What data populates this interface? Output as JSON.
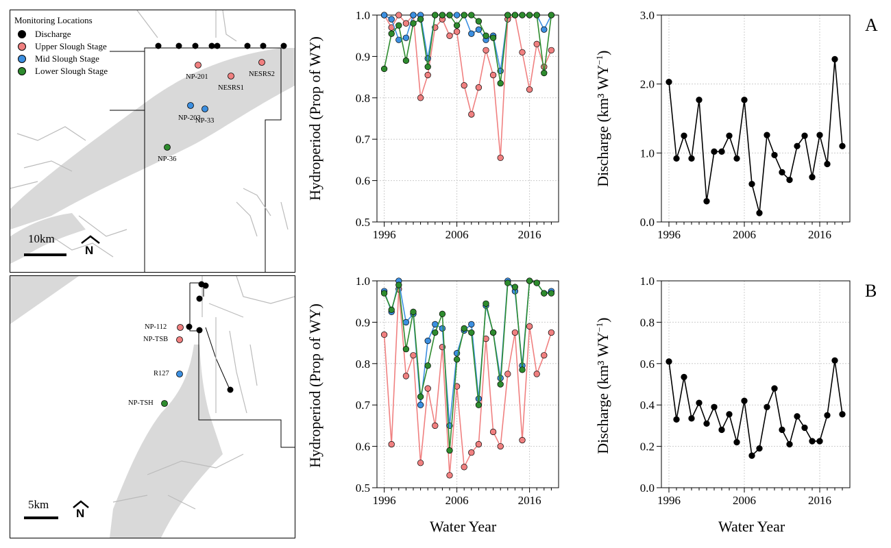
{
  "maps": {
    "legend": {
      "title": "Monitoring Locations",
      "items": [
        {
          "label": "Discharge",
          "color": "#000000"
        },
        {
          "label": "Upper Slough Stage",
          "color": "#f08080"
        },
        {
          "label": "Mid Slough Stage",
          "color": "#3c8fe0"
        },
        {
          "label": "Lower Slough Stage",
          "color": "#2e8b2e"
        }
      ]
    },
    "a": {
      "scale_label": "10km",
      "north_label": "N",
      "sites": [
        {
          "label": "NP-201",
          "color": "#f08080"
        },
        {
          "label": "NESRS1",
          "color": "#f08080"
        },
        {
          "label": "NESRS2",
          "color": "#f08080"
        },
        {
          "label": "NP-203",
          "color": "#3c8fe0"
        },
        {
          "label": "NP-33",
          "color": "#3c8fe0"
        },
        {
          "label": "NP-36",
          "color": "#2e8b2e"
        }
      ]
    },
    "b": {
      "scale_label": "5km",
      "north_label": "N",
      "sites": [
        {
          "label": "NP-112",
          "color": "#f08080"
        },
        {
          "label": "NP-TSB",
          "color": "#f08080"
        },
        {
          "label": "R127",
          "color": "#3c8fe0"
        },
        {
          "label": "NP-TSH",
          "color": "#2e8b2e"
        }
      ]
    }
  },
  "panels": {
    "a": {
      "letter": "A"
    },
    "b": {
      "letter": "B"
    }
  },
  "axis_text": {
    "hydro_ylabel": "Hydroperiod (Prop of WY)",
    "discharge_ylabel_main": "Discharge (km³ WY",
    "discharge_ylabel_sup": "−1",
    "discharge_ylabel_close": ")",
    "xlabel": "Water Year"
  },
  "colors": {
    "upper": "#f08080",
    "mid": "#3c8fe0",
    "lower": "#2e8b2e",
    "discharge": "#000000",
    "grid": "#cccccc",
    "map_shade": "#d9d9d9"
  },
  "chart_data": [
    {
      "id": "hydro-a",
      "type": "line",
      "ylabel": "Hydroperiod (Prop of WY)",
      "xlabel": "",
      "xlim": [
        1995,
        2020
      ],
      "ylim": [
        0.5,
        1.0
      ],
      "xticks": [
        1996,
        2006,
        2016
      ],
      "yticks": [
        0.5,
        0.6,
        0.7,
        0.8,
        0.9,
        1.0
      ],
      "ytick_labels": [
        "0.5",
        "0.6",
        "0.7",
        "0.8",
        "0.9",
        "1.0"
      ],
      "x": [
        1996,
        1997,
        1998,
        1999,
        2000,
        2001,
        2002,
        2003,
        2004,
        2005,
        2006,
        2007,
        2008,
        2009,
        2010,
        2011,
        2012,
        2013,
        2014,
        2015,
        2016,
        2017,
        2018,
        2019
      ],
      "series": [
        {
          "name": "Upper Slough Stage",
          "color": "#f08080",
          "values": [
            1.0,
            0.97,
            1.0,
            0.98,
            1.0,
            0.8,
            0.855,
            0.97,
            0.99,
            0.95,
            0.96,
            0.83,
            0.76,
            0.825,
            0.915,
            0.855,
            0.655,
            0.99,
            1.0,
            0.91,
            0.82,
            0.93,
            0.875,
            0.915
          ]
        },
        {
          "name": "Mid Slough Stage",
          "color": "#3c8fe0",
          "values": [
            1.0,
            0.99,
            0.94,
            0.945,
            1.0,
            1.0,
            0.895,
            1.0,
            1.0,
            1.0,
            1.0,
            1.0,
            0.955,
            0.965,
            0.94,
            0.95,
            0.865,
            1.0,
            1.0,
            1.0,
            1.0,
            1.0,
            0.965,
            1.0
          ]
        },
        {
          "name": "Lower Slough Stage",
          "color": "#2e8b2e",
          "values": [
            0.87,
            0.955,
            0.975,
            0.89,
            0.98,
            0.99,
            0.875,
            1.0,
            1.0,
            1.0,
            0.975,
            1.0,
            1.0,
            0.985,
            0.95,
            0.945,
            0.835,
            1.0,
            1.0,
            1.0,
            1.0,
            1.0,
            0.86,
            1.0
          ]
        }
      ]
    },
    {
      "id": "discharge-a",
      "type": "line",
      "ylabel": "Discharge (km³ WY⁻¹)",
      "xlabel": "",
      "xlim": [
        1995,
        2020
      ],
      "ylim": [
        0.0,
        3.0
      ],
      "xticks": [
        1996,
        2006,
        2016
      ],
      "yticks": [
        0.0,
        1.0,
        2.0,
        3.0
      ],
      "ytick_labels": [
        "0.0",
        "1.0",
        "2.0",
        "3.0"
      ],
      "x": [
        1996,
        1997,
        1998,
        1999,
        2000,
        2001,
        2002,
        2003,
        2004,
        2005,
        2006,
        2007,
        2008,
        2009,
        2010,
        2011,
        2012,
        2013,
        2014,
        2015,
        2016,
        2017,
        2018,
        2019
      ],
      "series": [
        {
          "name": "Discharge",
          "color": "#000000",
          "values": [
            2.03,
            0.92,
            1.25,
            0.92,
            1.77,
            0.3,
            1.02,
            1.02,
            1.25,
            0.92,
            1.77,
            0.55,
            0.13,
            1.26,
            0.97,
            0.72,
            0.61,
            1.1,
            1.25,
            0.65,
            1.26,
            0.84,
            2.36,
            1.1
          ]
        }
      ]
    },
    {
      "id": "hydro-b",
      "type": "line",
      "ylabel": "Hydroperiod (Prop of WY)",
      "xlabel": "Water Year",
      "xlim": [
        1995,
        2020
      ],
      "ylim": [
        0.5,
        1.0
      ],
      "xticks": [
        1996,
        2006,
        2016
      ],
      "yticks": [
        0.5,
        0.6,
        0.7,
        0.8,
        0.9,
        1.0
      ],
      "ytick_labels": [
        "0.5",
        "0.6",
        "0.7",
        "0.8",
        "0.9",
        "1.0"
      ],
      "x": [
        1996,
        1997,
        1998,
        1999,
        2000,
        2001,
        2002,
        2003,
        2004,
        2005,
        2006,
        2007,
        2008,
        2009,
        2010,
        2011,
        2012,
        2013,
        2014,
        2015,
        2016,
        2017,
        2018,
        2019
      ],
      "series": [
        {
          "name": "Upper Slough Stage",
          "color": "#f08080",
          "values": [
            0.87,
            0.605,
            0.98,
            0.77,
            0.82,
            0.56,
            0.74,
            0.65,
            0.84,
            0.53,
            0.745,
            0.55,
            0.585,
            0.605,
            0.86,
            0.635,
            0.6,
            0.775,
            0.875,
            0.615,
            0.89,
            0.775,
            0.82,
            0.875
          ]
        },
        {
          "name": "Mid Slough Stage",
          "color": "#3c8fe0",
          "values": [
            0.975,
            0.925,
            1.0,
            0.9,
            0.92,
            0.7,
            0.855,
            0.895,
            0.885,
            0.65,
            0.825,
            0.88,
            0.895,
            0.715,
            0.94,
            0.875,
            0.765,
            1.0,
            0.975,
            0.795,
            1.0,
            0.995,
            0.97,
            0.975
          ]
        },
        {
          "name": "Lower Slough Stage",
          "color": "#2e8b2e",
          "values": [
            0.97,
            0.93,
            0.99,
            0.835,
            0.925,
            0.72,
            0.795,
            0.875,
            0.92,
            0.59,
            0.81,
            0.885,
            0.875,
            0.7,
            0.945,
            0.875,
            0.75,
            0.995,
            0.985,
            0.785,
            1.0,
            0.995,
            0.97,
            0.97
          ]
        }
      ]
    },
    {
      "id": "discharge-b",
      "type": "line",
      "ylabel": "Discharge (km³ WY⁻¹)",
      "xlabel": "Water Year",
      "xlim": [
        1995,
        2020
      ],
      "ylim": [
        0.0,
        1.0
      ],
      "xticks": [
        1996,
        2006,
        2016
      ],
      "yticks": [
        0.0,
        0.2,
        0.4,
        0.6,
        0.8,
        1.0
      ],
      "ytick_labels": [
        "0.0",
        "0.2",
        "0.4",
        "0.6",
        "0.8",
        "1.0"
      ],
      "x": [
        1996,
        1997,
        1998,
        1999,
        2000,
        2001,
        2002,
        2003,
        2004,
        2005,
        2006,
        2007,
        2008,
        2009,
        2010,
        2011,
        2012,
        2013,
        2014,
        2015,
        2016,
        2017,
        2018,
        2019
      ],
      "series": [
        {
          "name": "Discharge",
          "color": "#000000",
          "values": [
            0.61,
            0.33,
            0.535,
            0.335,
            0.41,
            0.31,
            0.39,
            0.28,
            0.355,
            0.22,
            0.42,
            0.155,
            0.19,
            0.39,
            0.48,
            0.28,
            0.21,
            0.345,
            0.29,
            0.225,
            0.225,
            0.35,
            0.615,
            0.355
          ]
        }
      ]
    }
  ]
}
